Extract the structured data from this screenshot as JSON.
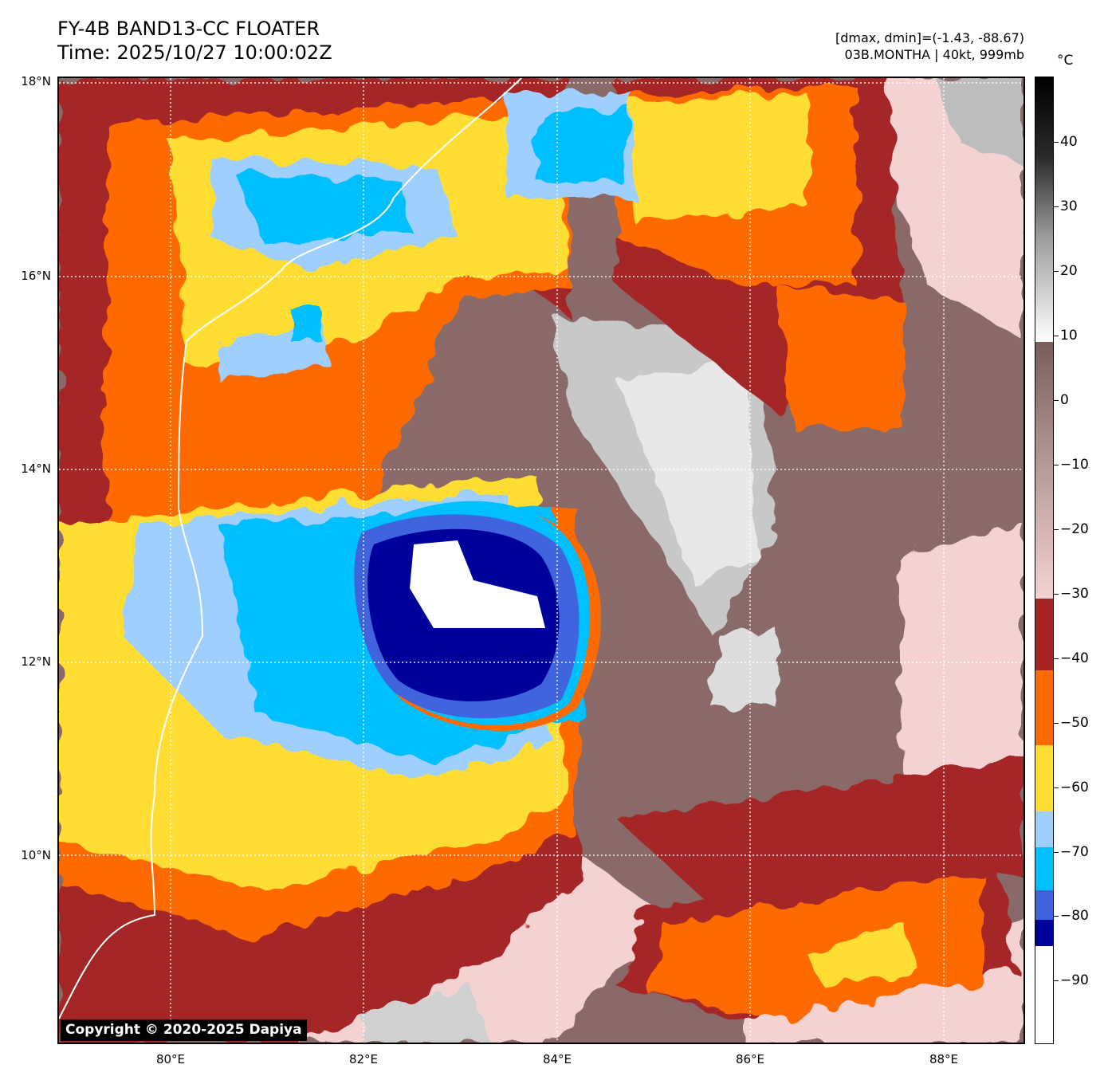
{
  "header": {
    "title_line1": "FY-4B BAND13-CC FLOATER",
    "title_line2": "Time: 2025/10/27 10:00:02Z",
    "range_text": "[dmax, dmin]=(-1.43, -88.67)",
    "storm_text": "03B.MONTHA | 40kt, 999mb"
  },
  "map": {
    "lat_labels": [
      "18°N",
      "16°N",
      "14°N",
      "12°N",
      "10°N"
    ],
    "lon_labels": [
      "80°E",
      "82°E",
      "84°E",
      "86°E",
      "88°E"
    ],
    "copyright": "Copyright © 2020-2025 Dapiya"
  },
  "colorbar": {
    "unit": "°C",
    "labels": [
      "40",
      "30",
      "20",
      "10",
      "0",
      "−10",
      "−20",
      "−30",
      "−40",
      "−50",
      "−60",
      "−70",
      "−80",
      "−90"
    ],
    "colors": {
      "white": "#ffffff",
      "navy": "#00009a",
      "royal": "#3f64dd",
      "deepsky": "#00bfff",
      "lightsky": "#9fcfff",
      "yellow": "#ffdd33",
      "orange": "#ff6a00",
      "darkred": "#a52525",
      "pink": "#f5d2d2",
      "brown": "#8a6a68"
    }
  }
}
